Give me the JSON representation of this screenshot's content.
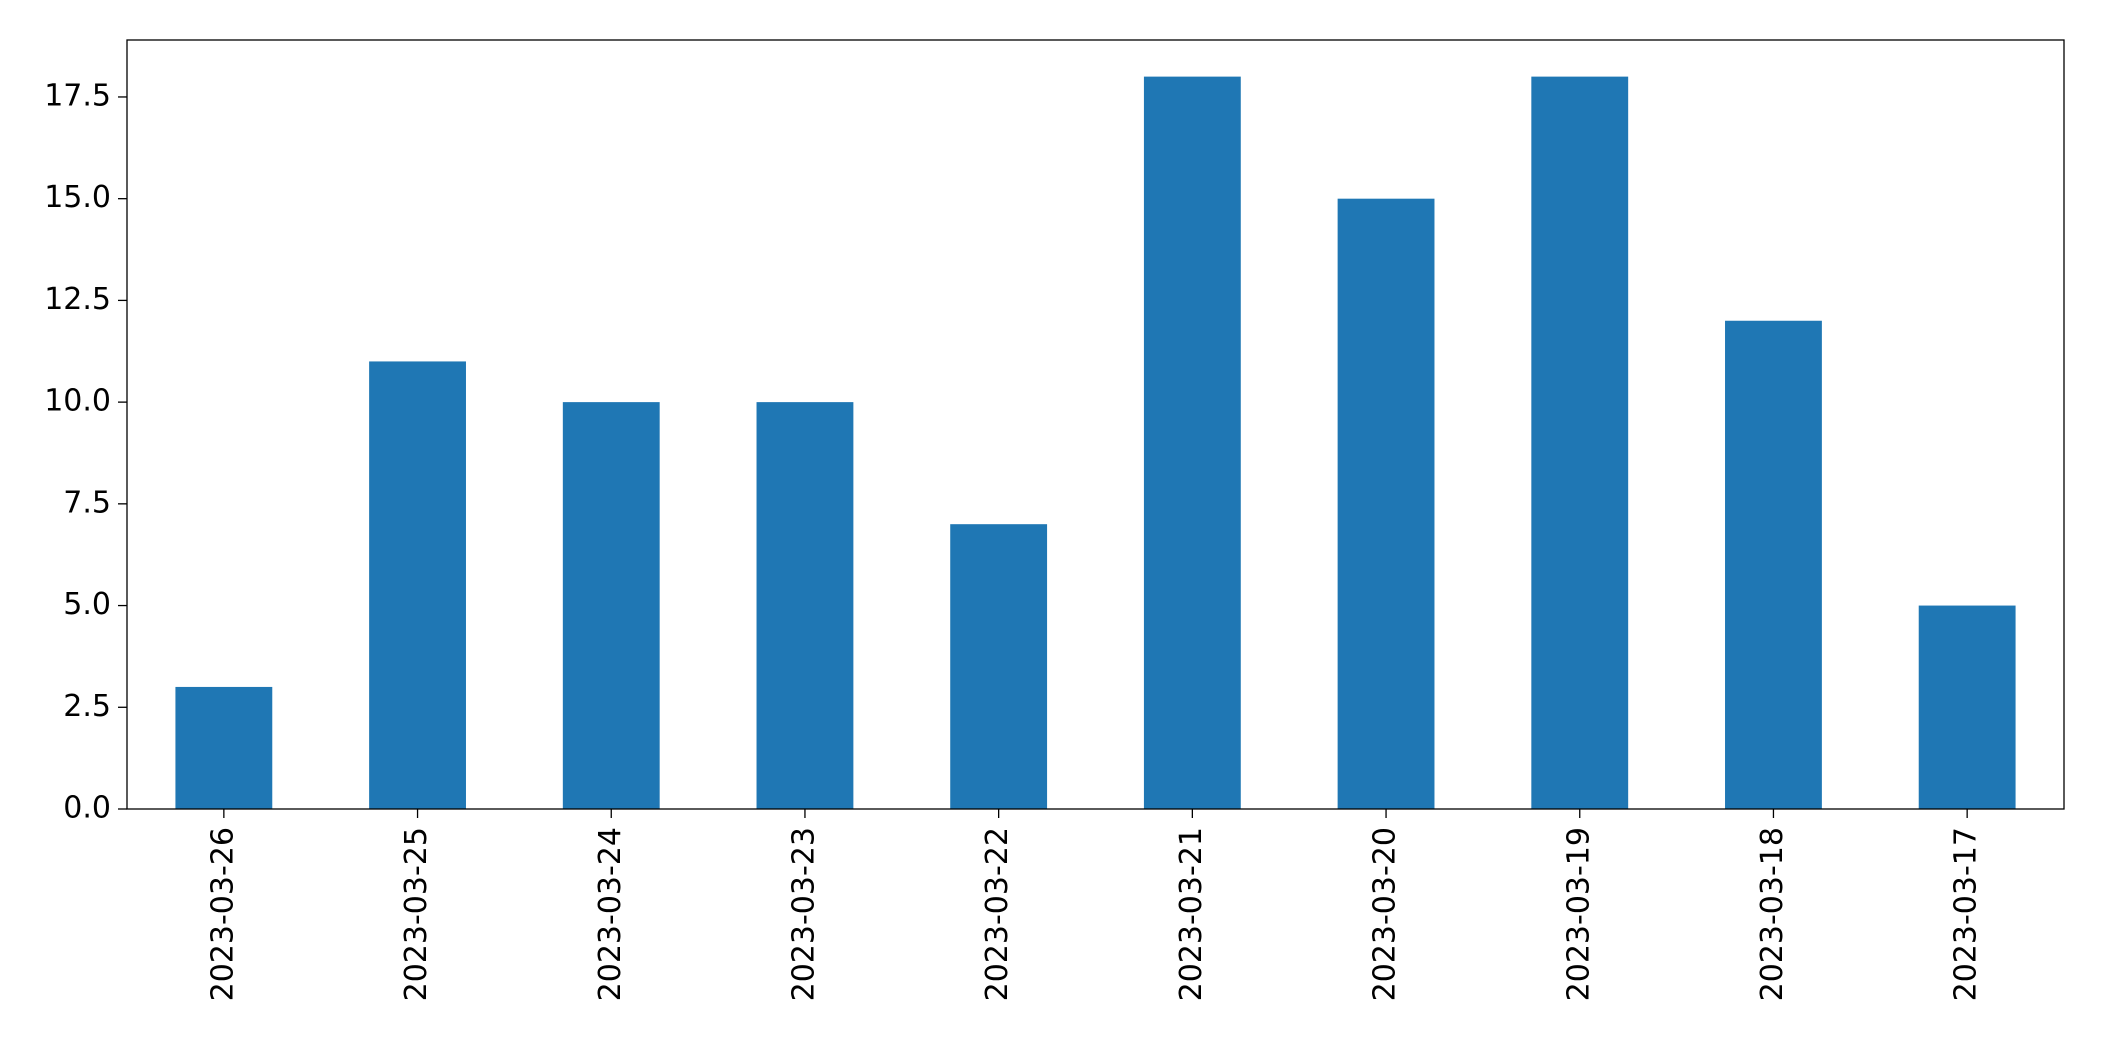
{
  "chart_data": {
    "type": "bar",
    "categories": [
      "2023-03-26",
      "2023-03-25",
      "2023-03-24",
      "2023-03-23",
      "2023-03-22",
      "2023-03-21",
      "2023-03-20",
      "2023-03-19",
      "2023-03-18",
      "2023-03-17"
    ],
    "values": [
      3,
      11,
      10,
      10,
      7,
      18,
      15,
      18,
      12,
      5
    ],
    "color": "#1f77b4",
    "ylim": [
      0,
      18.9
    ],
    "yticks": [
      {
        "value": 0,
        "label": "0.0"
      },
      {
        "value": 2.5,
        "label": "2.5"
      },
      {
        "value": 5,
        "label": "5.0"
      },
      {
        "value": 7.5,
        "label": "7.5"
      },
      {
        "value": 10,
        "label": "10.0"
      },
      {
        "value": 12.5,
        "label": "12.5"
      },
      {
        "value": 15,
        "label": "15.0"
      },
      {
        "value": 17.5,
        "label": "17.5"
      }
    ],
    "grid": false
  }
}
